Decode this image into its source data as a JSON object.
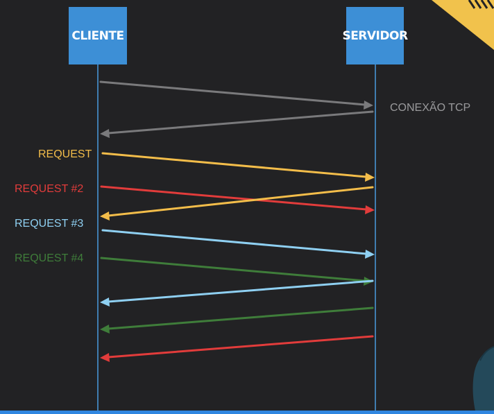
{
  "participants": {
    "client": "CLIENTE",
    "server": "SERVIDOR"
  },
  "labels": {
    "tcp": "CONEXÃO TCP",
    "request1": "REQUEST",
    "request2": "REQUEST #2",
    "request3": "REQUEST #3",
    "request4": "REQUEST #4"
  },
  "colors": {
    "background": "#222224",
    "participant_box": "#3d8fd6",
    "lifeline": "#4a9bdf",
    "tcp": "#7a7a7c",
    "tcp_label": "#9a9a9c",
    "request1": "#f3bd4a",
    "request2": "#e23c3b",
    "request3": "#8fd0f2",
    "request4": "#3f7d3a",
    "corner_stripe": "#f1c24c",
    "bottom_bar": "#2f86e0",
    "person_shirt": "#24495a"
  },
  "messages": [
    {
      "from": "client",
      "to": "server",
      "color": "tcp"
    },
    {
      "from": "server",
      "to": "client",
      "color": "tcp"
    },
    {
      "from": "client",
      "to": "server",
      "color": "request1"
    },
    {
      "from": "client",
      "to": "server",
      "color": "request2"
    },
    {
      "from": "server",
      "to": "client",
      "color": "request1"
    },
    {
      "from": "client",
      "to": "server",
      "color": "request3"
    },
    {
      "from": "client",
      "to": "server",
      "color": "request4"
    },
    {
      "from": "server",
      "to": "client",
      "color": "request3"
    },
    {
      "from": "server",
      "to": "client",
      "color": "request4"
    },
    {
      "from": "server",
      "to": "client",
      "color": "request2"
    }
  ]
}
